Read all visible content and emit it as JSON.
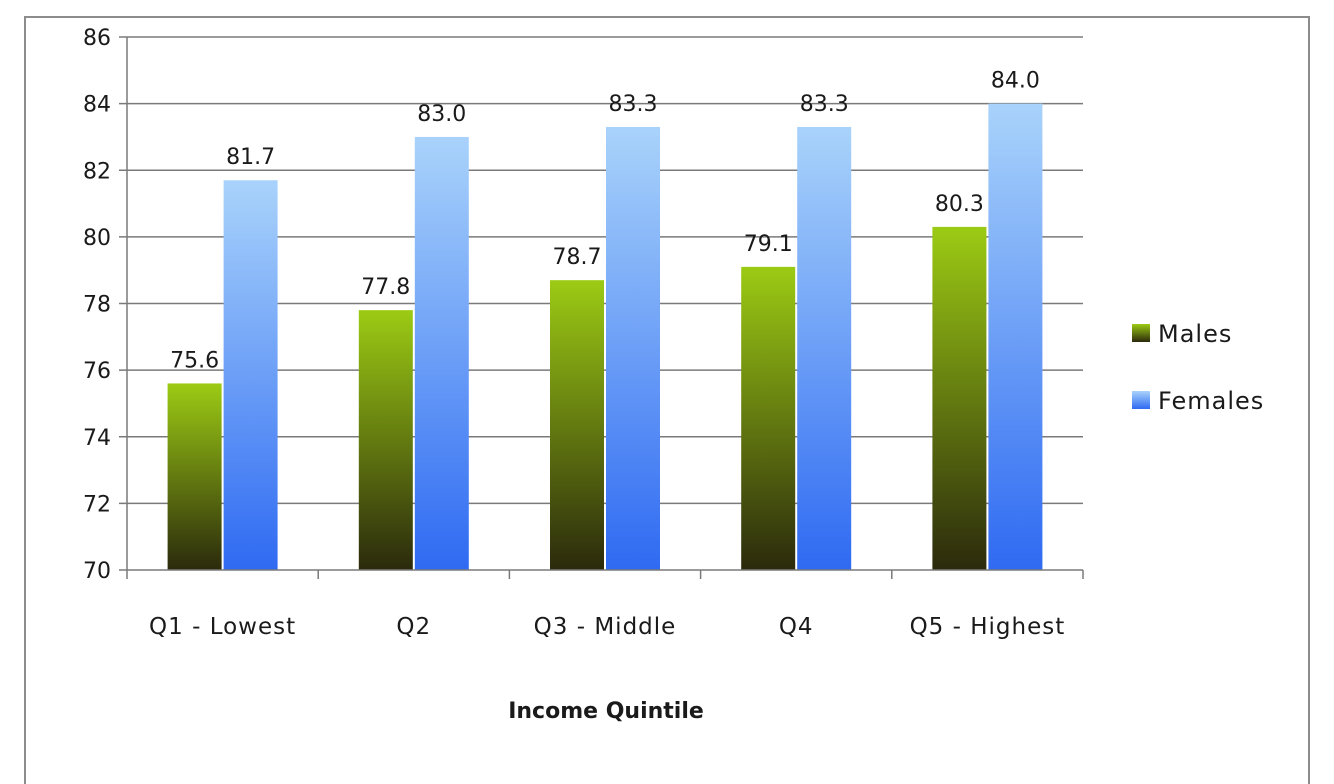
{
  "chart_data": {
    "type": "bar",
    "title": "",
    "xlabel": "Income Quintile",
    "ylabel": "",
    "ylim": [
      70,
      86
    ],
    "ytick_step": 2,
    "grid": true,
    "legend_position": "right",
    "categories": [
      "Q1 - Lowest",
      "Q2",
      "Q3 - Middle",
      "Q4",
      "Q5 - Highest"
    ],
    "series": [
      {
        "name": "Males",
        "values": [
          75.6,
          77.8,
          78.7,
          79.1,
          80.3
        ],
        "display_labels": [
          "75.6",
          "77.8",
          "78.7",
          "79.1",
          "80.3"
        ],
        "colors": [
          "#9ccb14",
          "#2b2a0c"
        ]
      },
      {
        "name": "Females",
        "values": [
          81.7,
          83.0,
          83.3,
          83.3,
          84.0
        ],
        "display_labels": [
          "81.7",
          "83.0",
          "83.3",
          "83.3",
          "84.0"
        ],
        "colors": [
          "#a9d3fb",
          "#2f6af2"
        ]
      }
    ]
  }
}
